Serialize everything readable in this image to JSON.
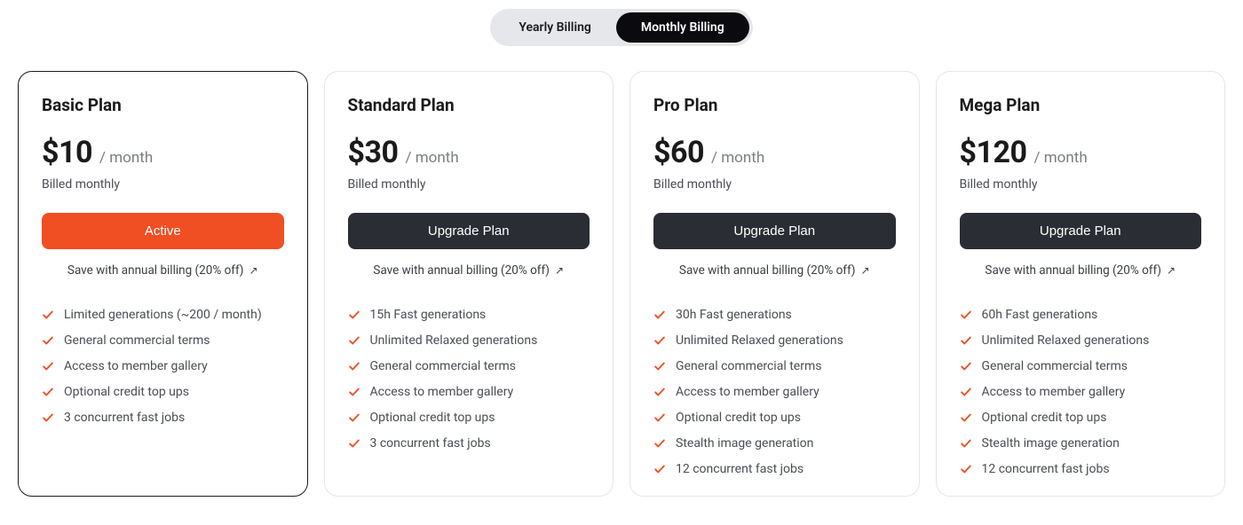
{
  "colors": {
    "toggle_bg": "#e6e7ea",
    "toggle_active_bg": "#0b0b0f",
    "card_border": "#e5e6ea",
    "card_current_border": "#1a1a1a",
    "active_button_bg": "#f04f23",
    "upgrade_button_bg": "#2a2d34",
    "check_color": "#f04f23",
    "text_primary": "#1a1a1a",
    "text_muted": "#7a7d85",
    "text_body": "#4a4d55"
  },
  "billing_toggle": {
    "yearly_label": "Yearly Billing",
    "monthly_label": "Monthly Billing",
    "selected": "monthly"
  },
  "annual_link_text": "Save with annual billing (20% off)",
  "plans": [
    {
      "name": "Basic Plan",
      "price": "$10",
      "period": "/ month",
      "billing_note": "Billed monthly",
      "cta_label": "Active",
      "cta_style": "active",
      "is_current": true,
      "features": [
        "Limited generations (~200 / month)",
        "General commercial terms",
        "Access to member gallery",
        "Optional credit top ups",
        "3 concurrent fast jobs"
      ]
    },
    {
      "name": "Standard Plan",
      "price": "$30",
      "period": "/ month",
      "billing_note": "Billed monthly",
      "cta_label": "Upgrade Plan",
      "cta_style": "upgrade",
      "is_current": false,
      "features": [
        "15h Fast generations",
        "Unlimited Relaxed generations",
        "General commercial terms",
        "Access to member gallery",
        "Optional credit top ups",
        "3 concurrent fast jobs"
      ]
    },
    {
      "name": "Pro Plan",
      "price": "$60",
      "period": "/ month",
      "billing_note": "Billed monthly",
      "cta_label": "Upgrade Plan",
      "cta_style": "upgrade",
      "is_current": false,
      "features": [
        "30h Fast generations",
        "Unlimited Relaxed generations",
        "General commercial terms",
        "Access to member gallery",
        "Optional credit top ups",
        "Stealth image generation",
        "12 concurrent fast jobs"
      ]
    },
    {
      "name": "Mega Plan",
      "price": "$120",
      "period": "/ month",
      "billing_note": "Billed monthly",
      "cta_label": "Upgrade Plan",
      "cta_style": "upgrade",
      "is_current": false,
      "features": [
        "60h Fast generations",
        "Unlimited Relaxed generations",
        "General commercial terms",
        "Access to member gallery",
        "Optional credit top ups",
        "Stealth image generation",
        "12 concurrent fast jobs"
      ]
    }
  ]
}
